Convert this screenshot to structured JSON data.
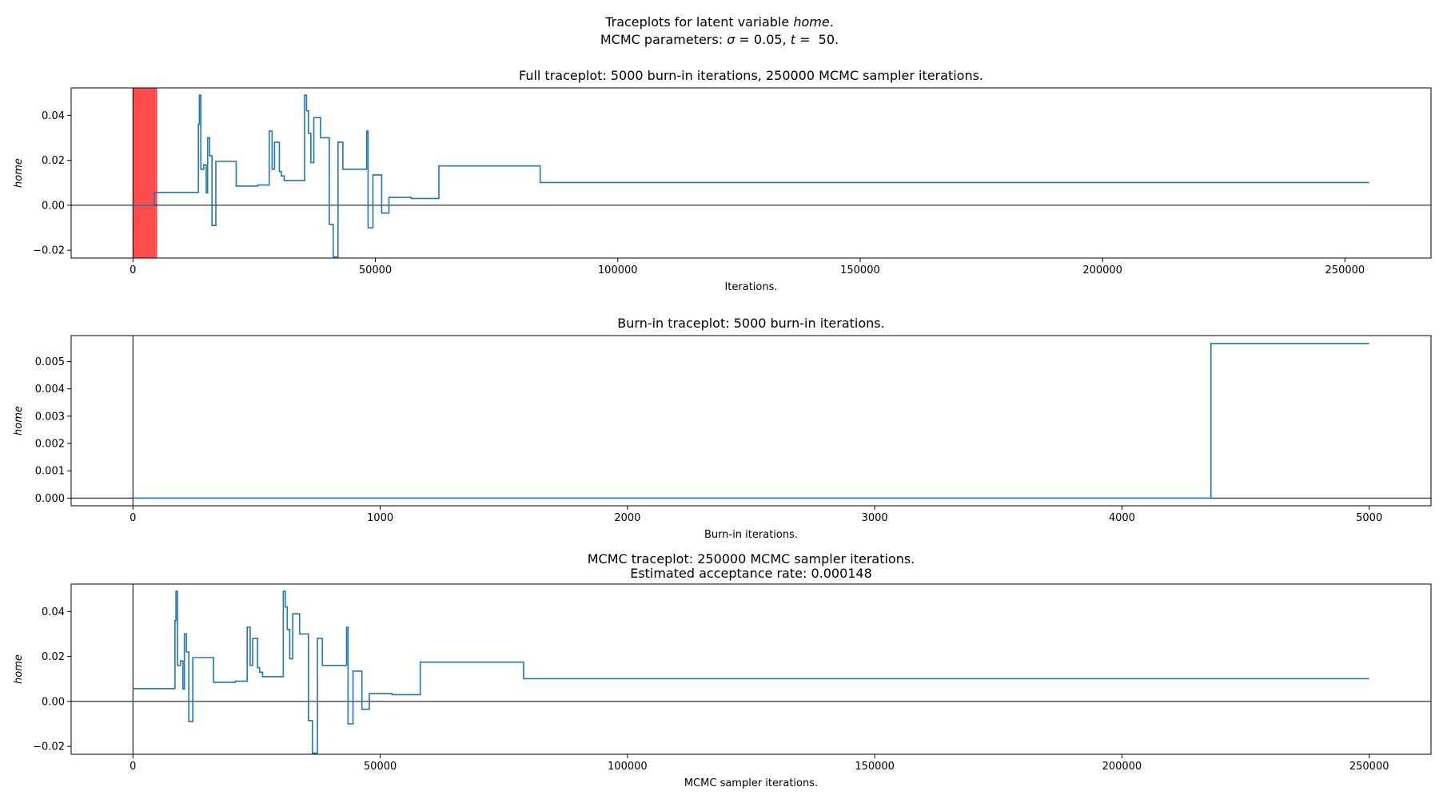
{
  "figure": {
    "title_line1_text": "Traceplots for latent variable ",
    "title_line1_var": "home",
    "title_line1_end": ".",
    "title_line2_text": "MCMC parameters: ",
    "title_line2_sigma_symbol": "σ",
    "title_line2_sigma_value": " = 0.05, ",
    "title_line2_t_symbol": "t",
    "title_line2_t_value": " =  50."
  },
  "colors": {
    "trace": "#1f77b4",
    "burnin_band": "#ff4c4c",
    "axes": "#000000",
    "zero_line": "#000000"
  },
  "chart_data": [
    {
      "type": "line",
      "title": "Full traceplot: 5000 burn-in iterations, 250000 MCMC sampler iterations.",
      "xlabel": "Iterations.",
      "ylabel": "home",
      "xlim": [
        -12750,
        267750
      ],
      "ylim": [
        -0.0235,
        0.0522
      ],
      "xticks": [
        0,
        50000,
        100000,
        150000,
        200000,
        250000
      ],
      "yticks": [
        -0.02,
        0.0,
        0.02,
        0.04
      ],
      "ytick_labels": [
        "−0.02",
        "0.00",
        "0.02",
        "0.04"
      ],
      "hline": 0,
      "vline": 0,
      "shaded_span": [
        0,
        5000
      ],
      "grid": false,
      "series": [
        {
          "step": true,
          "x": [
            0,
            4360,
            13500,
            13700,
            14000,
            14600,
            15100,
            15400,
            15800,
            16300,
            17100,
            21300,
            25700,
            28100,
            28700,
            29200,
            30200,
            30600,
            31200,
            35400,
            35800,
            36200,
            36700,
            37300,
            38700,
            40500,
            41300,
            42300,
            43300,
            48200,
            48500,
            49500,
            51300,
            52800,
            57400,
            63100,
            84000,
            255000
          ],
          "y": [
            0.0,
            0.0057,
            0.036,
            0.049,
            0.016,
            0.018,
            0.0055,
            0.03,
            0.022,
            -0.009,
            0.0195,
            0.0085,
            0.009,
            0.033,
            0.016,
            0.028,
            0.015,
            0.013,
            0.011,
            0.049,
            0.042,
            0.032,
            0.019,
            0.039,
            0.03,
            -0.0085,
            -0.023,
            0.028,
            0.016,
            0.033,
            -0.01,
            0.0135,
            -0.0035,
            0.0035,
            0.003,
            0.0175,
            0.0101,
            0.0101
          ]
        }
      ]
    },
    {
      "type": "line",
      "title": "Burn-in traceplot: 5000 burn-in iterations.",
      "xlabel": "Burn-in iterations.",
      "ylabel": "home",
      "xlim": [
        -250,
        5250
      ],
      "ylim": [
        -0.00028,
        0.00595
      ],
      "xticks": [
        0,
        1000,
        2000,
        3000,
        4000,
        5000
      ],
      "yticks": [
        0.0,
        0.001,
        0.002,
        0.003,
        0.004,
        0.005
      ],
      "ytick_labels": [
        "0.000",
        "0.001",
        "0.002",
        "0.003",
        "0.004",
        "0.005"
      ],
      "hline": 0,
      "vline": 0,
      "grid": false,
      "series": [
        {
          "step": true,
          "x": [
            0,
            4360,
            5000
          ],
          "y": [
            0.0,
            0.00566,
            0.00566
          ]
        }
      ]
    },
    {
      "type": "line",
      "title": "MCMC traceplot: 250000 MCMC sampler iterations.",
      "subtitle": "Estimated acceptance rate: 0.000148",
      "xlabel": "MCMC sampler iterations.",
      "ylabel": "home",
      "xlim": [
        -12500,
        262500
      ],
      "ylim": [
        -0.0235,
        0.0522
      ],
      "xticks": [
        0,
        50000,
        100000,
        150000,
        200000,
        250000
      ],
      "yticks": [
        -0.02,
        0.0,
        0.02,
        0.04
      ],
      "ytick_labels": [
        "−0.02",
        "0.00",
        "0.02",
        "0.04"
      ],
      "hline": 0,
      "vline": 0,
      "grid": false,
      "series": [
        {
          "step": true,
          "x": [
            0,
            8500,
            8700,
            9000,
            9600,
            10100,
            10400,
            10800,
            11300,
            12100,
            16300,
            20700,
            23100,
            23700,
            24200,
            25200,
            25600,
            26200,
            30400,
            30800,
            31200,
            31700,
            32300,
            33700,
            35500,
            36300,
            37300,
            38300,
            43200,
            43500,
            44500,
            46300,
            47800,
            52400,
            58100,
            79000,
            250000
          ],
          "y": [
            0.0057,
            0.036,
            0.049,
            0.016,
            0.018,
            0.0055,
            0.03,
            0.022,
            -0.009,
            0.0195,
            0.0085,
            0.009,
            0.033,
            0.016,
            0.028,
            0.015,
            0.013,
            0.011,
            0.049,
            0.042,
            0.032,
            0.019,
            0.039,
            0.03,
            -0.0085,
            -0.023,
            0.028,
            0.016,
            0.033,
            -0.01,
            0.0135,
            -0.0035,
            0.0035,
            0.003,
            0.0175,
            0.0101,
            0.0101
          ]
        }
      ]
    }
  ]
}
